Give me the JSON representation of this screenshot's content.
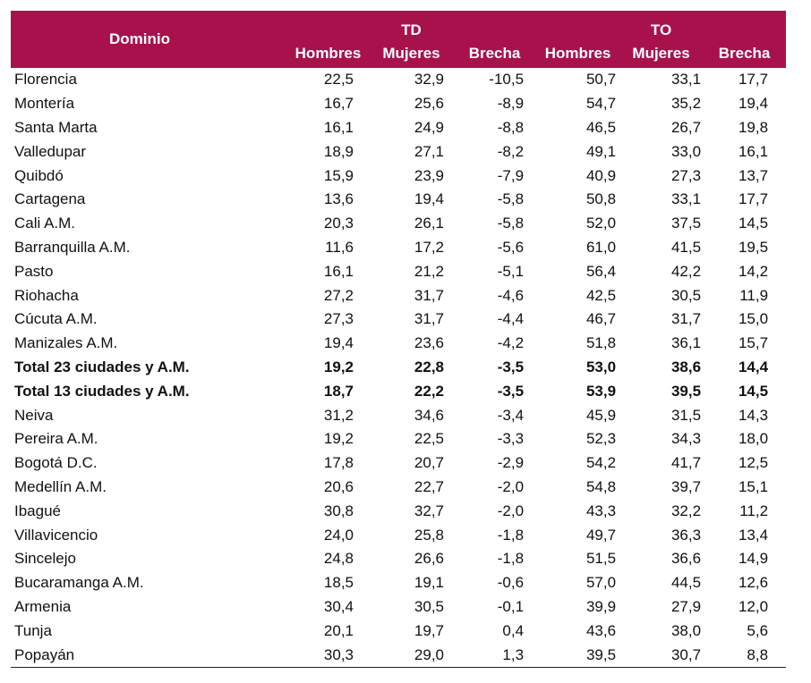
{
  "table": {
    "header": {
      "dominio": "Dominio",
      "group_td": "TD",
      "group_to": "TO",
      "td_cols": [
        "Hombres",
        "Mujeres",
        "Brecha"
      ],
      "to_cols": [
        "Hombres",
        "Mujeres",
        "Brecha"
      ]
    },
    "rows": [
      {
        "name": "Florencia",
        "vals": [
          "22,5",
          "32,9",
          "-10,5",
          "50,7",
          "33,1",
          "17,7"
        ],
        "bold": false
      },
      {
        "name": "Montería",
        "vals": [
          "16,7",
          "25,6",
          "-8,9",
          "54,7",
          "35,2",
          "19,4"
        ],
        "bold": false
      },
      {
        "name": "Santa Marta",
        "vals": [
          "16,1",
          "24,9",
          "-8,8",
          "46,5",
          "26,7",
          "19,8"
        ],
        "bold": false
      },
      {
        "name": "Valledupar",
        "vals": [
          "18,9",
          "27,1",
          "-8,2",
          "49,1",
          "33,0",
          "16,1"
        ],
        "bold": false
      },
      {
        "name": "Quibdó",
        "vals": [
          "15,9",
          "23,9",
          "-7,9",
          "40,9",
          "27,3",
          "13,7"
        ],
        "bold": false
      },
      {
        "name": "Cartagena",
        "vals": [
          "13,6",
          "19,4",
          "-5,8",
          "50,8",
          "33,1",
          "17,7"
        ],
        "bold": false
      },
      {
        "name": "Cali A.M.",
        "vals": [
          "20,3",
          "26,1",
          "-5,8",
          "52,0",
          "37,5",
          "14,5"
        ],
        "bold": false
      },
      {
        "name": "Barranquilla A.M.",
        "vals": [
          "11,6",
          "17,2",
          "-5,6",
          "61,0",
          "41,5",
          "19,5"
        ],
        "bold": false
      },
      {
        "name": "Pasto",
        "vals": [
          "16,1",
          "21,2",
          "-5,1",
          "56,4",
          "42,2",
          "14,2"
        ],
        "bold": false
      },
      {
        "name": "Riohacha",
        "vals": [
          "27,2",
          "31,7",
          "-4,6",
          "42,5",
          "30,5",
          "11,9"
        ],
        "bold": false
      },
      {
        "name": "Cúcuta A.M.",
        "vals": [
          "27,3",
          "31,7",
          "-4,4",
          "46,7",
          "31,7",
          "15,0"
        ],
        "bold": false
      },
      {
        "name": "Manizales A.M.",
        "vals": [
          "19,4",
          "23,6",
          "-4,2",
          "51,8",
          "36,1",
          "15,7"
        ],
        "bold": false
      },
      {
        "name": "Total 23 ciudades y A.M.",
        "vals": [
          "19,2",
          "22,8",
          "-3,5",
          "53,0",
          "38,6",
          "14,4"
        ],
        "bold": true
      },
      {
        "name": "Total 13 ciudades y A.M.",
        "vals": [
          "18,7",
          "22,2",
          "-3,5",
          "53,9",
          "39,5",
          "14,5"
        ],
        "bold": true
      },
      {
        "name": "Neiva",
        "vals": [
          "31,2",
          "34,6",
          "-3,4",
          "45,9",
          "31,5",
          "14,3"
        ],
        "bold": false
      },
      {
        "name": "Pereira A.M.",
        "vals": [
          "19,2",
          "22,5",
          "-3,3",
          "52,3",
          "34,3",
          "18,0"
        ],
        "bold": false
      },
      {
        "name": "Bogotá D.C.",
        "vals": [
          "17,8",
          "20,7",
          "-2,9",
          "54,2",
          "41,7",
          "12,5"
        ],
        "bold": false
      },
      {
        "name": "Medellín A.M.",
        "vals": [
          "20,6",
          "22,7",
          "-2,0",
          "54,8",
          "39,7",
          "15,1"
        ],
        "bold": false
      },
      {
        "name": "Ibagué",
        "vals": [
          "30,8",
          "32,7",
          "-2,0",
          "43,3",
          "32,2",
          "11,2"
        ],
        "bold": false
      },
      {
        "name": "Villavicencio",
        "vals": [
          "24,0",
          "25,8",
          "-1,8",
          "49,7",
          "36,3",
          "13,4"
        ],
        "bold": false
      },
      {
        "name": "Sincelejo",
        "vals": [
          "24,8",
          "26,6",
          "-1,8",
          "51,5",
          "36,6",
          "14,9"
        ],
        "bold": false
      },
      {
        "name": "Bucaramanga A.M.",
        "vals": [
          "18,5",
          "19,1",
          "-0,6",
          "57,0",
          "44,5",
          "12,6"
        ],
        "bold": false
      },
      {
        "name": "Armenia",
        "vals": [
          "30,4",
          "30,5",
          "-0,1",
          "39,9",
          "27,9",
          "12,0"
        ],
        "bold": false
      },
      {
        "name": "Tunja",
        "vals": [
          "20,1",
          "19,7",
          "0,4",
          "43,6",
          "38,0",
          "5,6"
        ],
        "bold": false
      },
      {
        "name": "Popayán",
        "vals": [
          "30,3",
          "29,0",
          "1,3",
          "39,5",
          "30,7",
          "8,8"
        ],
        "bold": false
      }
    ]
  },
  "colors": {
    "header_bg": "#a8124c",
    "header_text": "#ffffff"
  }
}
